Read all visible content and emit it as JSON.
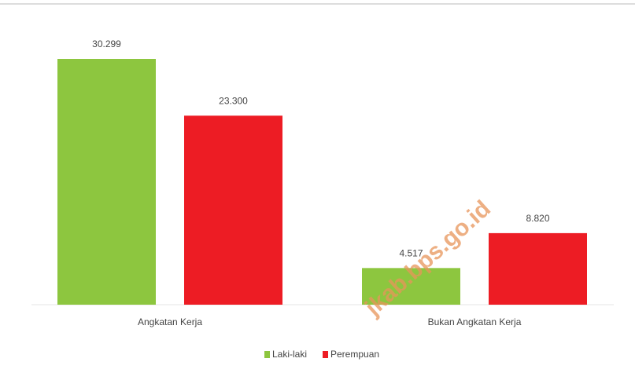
{
  "chart_data": {
    "type": "bar",
    "categories": [
      "Angkatan Kerja",
      "Bukan Angkatan Kerja"
    ],
    "series": [
      {
        "name": "Laki-laki",
        "color": "#8dc63f",
        "values": [
          30299,
          4517
        ],
        "value_labels": [
          "30.299",
          "4.517"
        ]
      },
      {
        "name": "Perempuan",
        "color": "#ed1c24",
        "values": [
          23300,
          8820
        ],
        "value_labels": [
          "23.300",
          "8.820"
        ]
      }
    ],
    "annotations": [
      "jkab.bps.go.id"
    ]
  }
}
